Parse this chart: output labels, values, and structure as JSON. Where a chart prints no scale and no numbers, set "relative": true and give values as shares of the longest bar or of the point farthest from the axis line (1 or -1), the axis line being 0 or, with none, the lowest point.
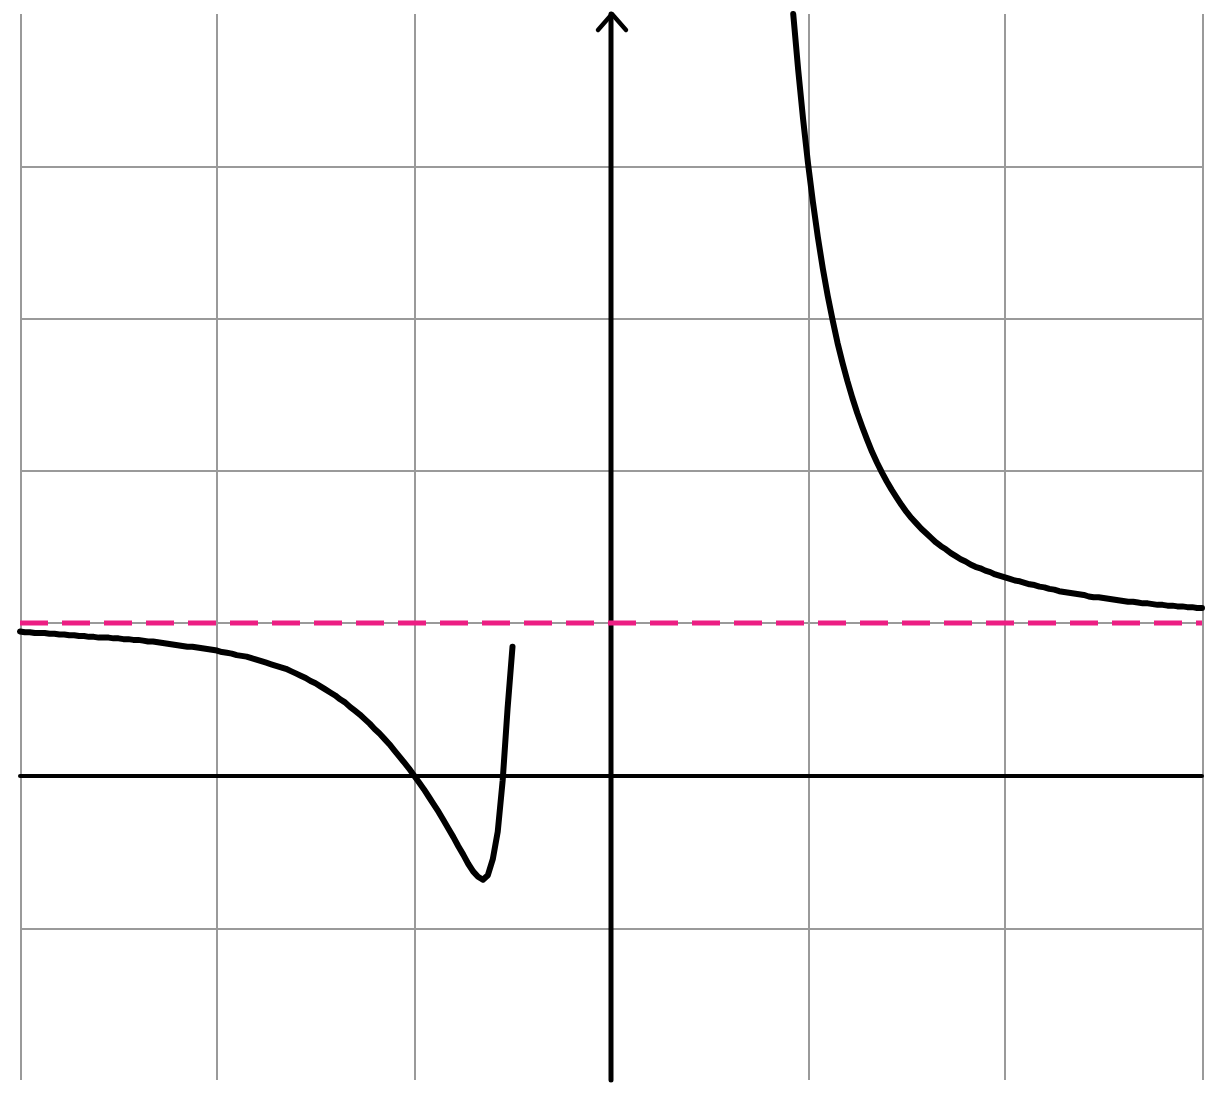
{
  "chart_data": {
    "type": "line",
    "relative": true,
    "grid": true,
    "marker": "none",
    "categories": [
      null,
      null,
      null,
      null,
      null,
      null,
      null,
      null,
      null,
      null,
      null,
      null,
      null,
      null,
      null,
      null,
      null,
      null,
      null,
      null,
      null,
      null,
      null,
      null,
      null,
      null,
      null,
      null,
      null,
      null,
      null,
      null,
      null,
      null,
      null,
      null,
      null,
      null,
      null,
      null,
      null,
      null,
      null,
      null,
      null,
      null,
      null,
      null,
      null,
      null,
      null,
      null,
      null,
      null,
      null,
      null,
      null,
      null,
      null,
      null,
      null,
      null,
      null,
      null,
      null,
      null,
      null,
      null,
      null,
      null,
      null,
      null,
      null,
      null,
      null,
      null,
      null,
      null,
      null,
      null,
      null,
      null,
      null,
      null,
      null,
      null,
      null,
      null,
      null,
      null,
      null,
      null,
      null,
      null,
      null,
      null,
      null,
      null,
      null,
      null,
      null,
      null,
      null,
      null,
      null,
      null,
      null,
      null,
      null,
      null,
      null,
      null,
      null,
      null,
      null,
      null,
      null,
      null,
      null,
      null,
      null,
      null,
      null,
      null,
      null,
      null,
      null,
      null,
      null,
      null,
      null,
      null,
      null,
      null,
      null,
      null,
      null,
      null,
      null,
      null,
      null,
      null,
      null,
      null,
      null,
      null,
      null,
      null,
      null,
      null,
      null,
      null,
      null,
      null,
      null,
      null,
      null,
      null,
      null,
      null,
      null,
      null,
      null,
      null,
      null,
      null,
      null,
      null,
      null,
      null,
      null,
      null,
      null,
      null,
      null,
      null,
      null,
      null,
      null,
      null,
      null,
      null,
      null,
      null,
      null,
      null,
      null,
      null,
      null,
      null,
      null,
      null,
      null,
      null,
      null,
      null,
      null,
      null,
      null,
      null,
      null,
      null,
      null,
      null,
      null,
      null,
      null,
      null,
      null,
      null,
      null,
      null,
      null,
      null,
      null,
      null,
      null,
      null,
      null,
      null,
      null,
      null,
      null,
      null,
      null,
      null,
      null,
      null,
      null,
      null,
      null,
      null,
      null,
      null,
      null,
      null,
      null,
      null,
      null,
      null,
      null
    ],
    "series": [
      {
        "color": "#000000",
        "values": [
          0.189,
          0.188,
          0.188,
          0.187,
          0.187,
          0.187,
          0.186,
          0.186,
          0.185,
          0.185,
          0.184,
          0.184,
          0.183,
          0.183,
          0.182,
          0.182,
          0.181,
          0.181,
          0.181,
          0.18,
          0.18,
          0.179,
          0.179,
          0.178,
          0.178,
          0.177,
          0.176,
          0.176,
          0.175,
          0.174,
          0.173,
          0.172,
          0.171,
          0.17,
          0.169,
          0.169,
          0.168,
          0.167,
          0.166,
          0.165,
          0.164,
          0.162,
          0.161,
          0.16,
          0.158,
          0.157,
          0.156,
          0.154,
          0.152,
          0.15,
          0.148,
          0.146,
          0.144,
          0.142,
          0.14,
          0.137,
          0.134,
          0.131,
          0.128,
          0.124,
          0.121,
          0.117,
          0.113,
          0.109,
          0.105,
          0.1,
          0.096,
          0.09,
          0.085,
          0.08,
          0.074,
          0.068,
          0.061,
          0.055,
          0.048,
          0.041,
          0.033,
          0.025,
          0.017,
          0.009,
          0.0,
          -0.009,
          -0.018,
          -0.028,
          -0.038,
          -0.048,
          -0.059,
          -0.07,
          -0.081,
          -0.093,
          -0.104,
          -0.116,
          -0.126,
          -0.133,
          -0.137,
          -0.131,
          -0.11,
          -0.074,
          -0.007,
          0.088,
          0.169,
          null,
          null,
          null,
          null,
          null,
          null,
          null,
          null,
          null,
          null,
          null,
          null,
          null,
          null,
          null,
          null,
          null,
          null,
          null,
          null,
          null,
          null,
          null,
          null,
          null,
          null,
          null,
          null,
          null,
          null,
          null,
          null,
          null,
          null,
          null,
          null,
          null,
          null,
          null,
          null,
          null,
          null,
          null,
          null,
          null,
          null,
          null,
          null,
          null,
          null,
          null,
          null,
          null,
          null,
          null,
          null,
          1.0,
          0.927,
          0.862,
          0.804,
          0.753,
          0.707,
          0.666,
          0.63,
          0.598,
          0.568,
          0.542,
          0.518,
          0.496,
          0.476,
          0.458,
          0.441,
          0.425,
          0.411,
          0.398,
          0.386,
          0.375,
          0.365,
          0.355,
          0.346,
          0.338,
          0.331,
          0.324,
          0.318,
          0.312,
          0.306,
          0.301,
          0.297,
          0.292,
          0.288,
          0.284,
          0.281,
          0.277,
          0.274,
          0.272,
          0.269,
          0.267,
          0.264,
          0.262,
          0.26,
          0.258,
          0.256,
          0.255,
          0.253,
          0.251,
          0.25,
          0.248,
          0.247,
          0.245,
          0.244,
          0.242,
          0.241,
          0.24,
          0.239,
          0.238,
          0.237,
          0.235,
          0.234,
          0.234,
          0.233,
          0.232,
          0.231,
          0.23,
          0.229,
          0.228,
          0.228,
          0.227,
          0.226,
          0.226,
          0.225,
          0.224,
          0.224,
          0.223,
          0.223,
          0.222,
          0.222,
          0.221,
          0.221,
          0.22,
          0.22
        ]
      }
    ],
    "ref_lines": [
      {
        "axis": "y",
        "value": 0.2,
        "color": "#ec1e83",
        "line_style": "dashed"
      }
    ]
  }
}
